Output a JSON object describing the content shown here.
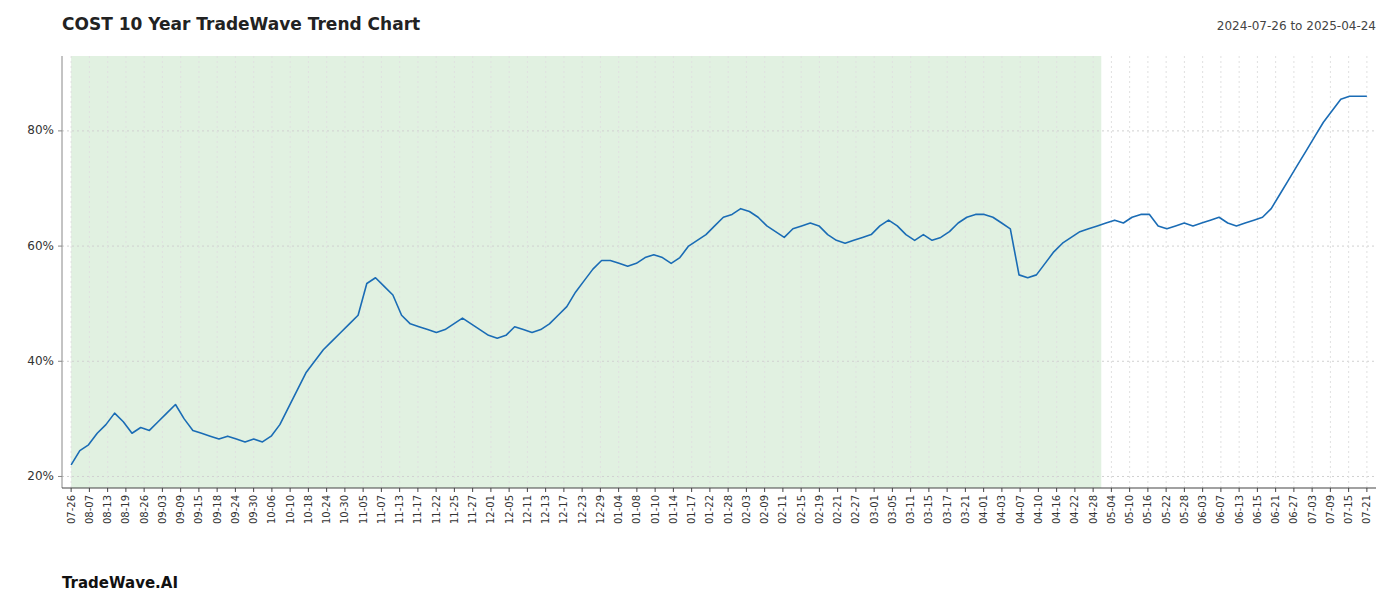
{
  "chart_data": {
    "type": "line",
    "title": "COST 10 Year TradeWave Trend Chart",
    "subtitle": "2024-07-26 to 2025-04-24",
    "annotations": [
      "TradeWave.AI"
    ],
    "color": "#1a6cb5",
    "grid": true,
    "shaded_x": [
      0,
      56.445
    ],
    "shaded_color": "#c8e6c8",
    "xlim": [
      -0.5,
      71.5
    ],
    "xticks": [
      {
        "value": 0,
        "label": "07-26"
      },
      {
        "value": 1,
        "label": "08-07"
      },
      {
        "value": 2,
        "label": "08-13"
      },
      {
        "value": 3,
        "label": "08-19"
      },
      {
        "value": 4,
        "label": "08-26"
      },
      {
        "value": 5,
        "label": "09-03"
      },
      {
        "value": 6,
        "label": "09-09"
      },
      {
        "value": 7,
        "label": "09-15"
      },
      {
        "value": 8,
        "label": "09-18"
      },
      {
        "value": 9,
        "label": "09-24"
      },
      {
        "value": 10,
        "label": "09-30"
      },
      {
        "value": 11,
        "label": "10-06"
      },
      {
        "value": 12,
        "label": "10-10"
      },
      {
        "value": 13,
        "label": "10-18"
      },
      {
        "value": 14,
        "label": "10-24"
      },
      {
        "value": 15,
        "label": "10-30"
      },
      {
        "value": 16,
        "label": "11-05"
      },
      {
        "value": 17,
        "label": "11-07"
      },
      {
        "value": 18,
        "label": "11-13"
      },
      {
        "value": 19,
        "label": "11-17"
      },
      {
        "value": 20,
        "label": "11-22"
      },
      {
        "value": 21,
        "label": "11-25"
      },
      {
        "value": 22,
        "label": "11-27"
      },
      {
        "value": 23,
        "label": "12-01"
      },
      {
        "value": 24,
        "label": "12-05"
      },
      {
        "value": 25,
        "label": "12-11"
      },
      {
        "value": 26,
        "label": "12-13"
      },
      {
        "value": 27,
        "label": "12-17"
      },
      {
        "value": 28,
        "label": "12-23"
      },
      {
        "value": 29,
        "label": "12-29"
      },
      {
        "value": 30,
        "label": "01-04"
      },
      {
        "value": 31,
        "label": "01-08"
      },
      {
        "value": 32,
        "label": "01-10"
      },
      {
        "value": 33,
        "label": "01-14"
      },
      {
        "value": 34,
        "label": "01-17"
      },
      {
        "value": 35,
        "label": "01-22"
      },
      {
        "value": 36,
        "label": "01-28"
      },
      {
        "value": 37,
        "label": "02-03"
      },
      {
        "value": 38,
        "label": "02-09"
      },
      {
        "value": 39,
        "label": "02-11"
      },
      {
        "value": 40,
        "label": "02-15"
      },
      {
        "value": 41,
        "label": "02-19"
      },
      {
        "value": 42,
        "label": "02-21"
      },
      {
        "value": 43,
        "label": "02-27"
      },
      {
        "value": 44,
        "label": "03-01"
      },
      {
        "value": 45,
        "label": "03-05"
      },
      {
        "value": 46,
        "label": "03-11"
      },
      {
        "value": 47,
        "label": "03-15"
      },
      {
        "value": 48,
        "label": "03-17"
      },
      {
        "value": 49,
        "label": "03-21"
      },
      {
        "value": 50,
        "label": "04-01"
      },
      {
        "value": 51,
        "label": "04-03"
      },
      {
        "value": 52,
        "label": "04-07"
      },
      {
        "value": 53,
        "label": "04-10"
      },
      {
        "value": 54,
        "label": "04-16"
      },
      {
        "value": 55,
        "label": "04-22"
      },
      {
        "value": 56,
        "label": "04-28"
      },
      {
        "value": 57,
        "label": "05-04"
      },
      {
        "value": 58,
        "label": "05-10"
      },
      {
        "value": 59,
        "label": "05-16"
      },
      {
        "value": 60,
        "label": "05-22"
      },
      {
        "value": 61,
        "label": "05-28"
      },
      {
        "value": 62,
        "label": "06-03"
      },
      {
        "value": 63,
        "label": "06-07"
      },
      {
        "value": 64,
        "label": "06-13"
      },
      {
        "value": 65,
        "label": "06-15"
      },
      {
        "value": 66,
        "label": "06-21"
      },
      {
        "value": 67,
        "label": "06-27"
      },
      {
        "value": 68,
        "label": "07-03"
      },
      {
        "value": 69,
        "label": "07-09"
      },
      {
        "value": 70,
        "label": "07-15"
      },
      {
        "value": 71,
        "label": "07-21"
      }
    ],
    "ylim": [
      18,
      93
    ],
    "yticks": [
      {
        "value": 20,
        "label": "20%"
      },
      {
        "value": 40,
        "label": "40%"
      },
      {
        "value": 60,
        "label": "60%"
      },
      {
        "value": 80,
        "label": "80%"
      }
    ],
    "values": [
      22.0,
      24.5,
      25.5,
      27.5,
      29.0,
      31.0,
      29.5,
      27.5,
      28.5,
      28.0,
      29.5,
      31.0,
      32.5,
      30.0,
      28.0,
      27.5,
      27.0,
      26.5,
      27.0,
      26.5,
      26.0,
      26.5,
      26.0,
      27.0,
      29.0,
      32.0,
      35.0,
      38.0,
      40.0,
      42.0,
      43.5,
      45.0,
      46.5,
      48.0,
      53.5,
      54.5,
      53.0,
      51.5,
      48.0,
      46.5,
      46.0,
      45.5,
      45.0,
      45.5,
      46.5,
      47.5,
      46.5,
      45.5,
      44.5,
      44.0,
      44.5,
      46.0,
      45.5,
      45.0,
      45.5,
      46.5,
      48.0,
      49.5,
      52.0,
      54.0,
      56.0,
      57.5,
      57.5,
      57.0,
      56.5,
      57.0,
      58.0,
      58.5,
      58.0,
      57.0,
      58.0,
      60.0,
      61.0,
      62.0,
      63.5,
      65.0,
      65.5,
      66.5,
      66.0,
      65.0,
      63.5,
      62.5,
      61.5,
      63.0,
      63.5,
      64.0,
      63.5,
      62.0,
      61.0,
      60.5,
      61.0,
      61.5,
      62.0,
      63.5,
      64.5,
      63.5,
      62.0,
      61.0,
      62.0,
      61.0,
      61.5,
      62.5,
      64.0,
      65.0,
      65.5,
      65.5,
      65.0,
      64.0,
      63.0,
      55.0,
      54.5,
      55.0,
      57.0,
      59.0,
      60.5,
      61.5,
      62.5,
      63.0,
      63.5,
      64.0,
      64.5,
      64.0,
      65.0,
      65.5,
      65.5,
      63.5,
      63.0,
      63.5,
      64.0,
      63.5,
      64.0,
      64.5,
      65.0,
      64.0,
      63.5,
      64.0,
      64.5,
      65.0,
      66.5,
      69.0,
      71.5,
      74.0,
      76.5,
      79.0,
      81.5,
      83.5,
      85.5,
      86.0,
      86.0,
      86.0
    ]
  }
}
